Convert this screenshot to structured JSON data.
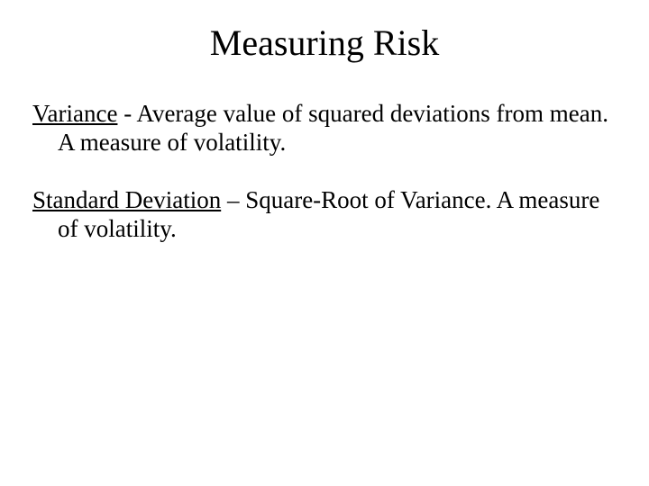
{
  "slide": {
    "background_color": "#ffffff",
    "text_color": "#000000",
    "font_family": "Times New Roman",
    "title": {
      "text": "Measuring Risk",
      "fontsize_pt": 40,
      "align": "center"
    },
    "definitions": [
      {
        "term": "Variance",
        "separator": " - ",
        "definition": "Average value of squared deviations from mean.  A measure of volatility.",
        "fontsize_pt": 27
      },
      {
        "term": "Standard Deviation",
        "separator": " – ",
        "definition": "Square-Root of Variance.  A measure of volatility.",
        "fontsize_pt": 27
      }
    ]
  }
}
